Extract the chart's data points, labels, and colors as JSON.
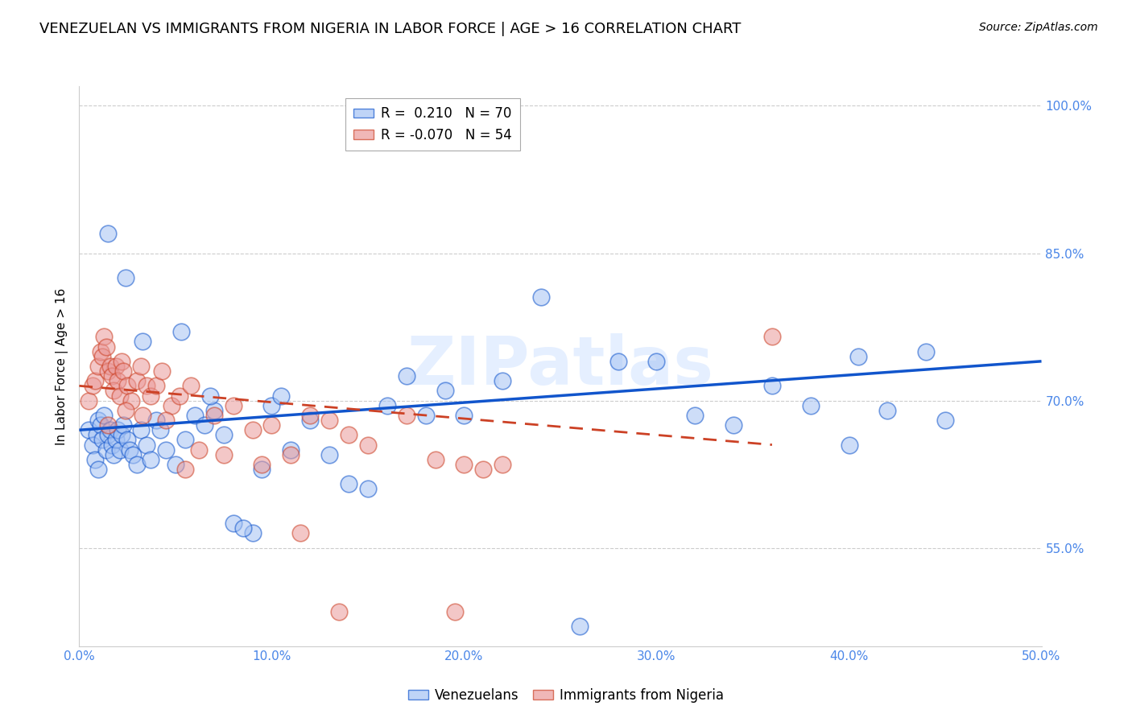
{
  "title": "VENEZUELAN VS IMMIGRANTS FROM NIGERIA IN LABOR FORCE | AGE > 16 CORRELATION CHART",
  "source": "Source: ZipAtlas.com",
  "ylabel": "In Labor Force | Age > 16",
  "watermark": "ZIPatlas",
  "xlim": [
    0.0,
    50.0
  ],
  "ylim": [
    45.0,
    102.0
  ],
  "xticks": [
    0.0,
    10.0,
    20.0,
    30.0,
    40.0,
    50.0
  ],
  "yticks_right": [
    55.0,
    70.0,
    85.0,
    100.0
  ],
  "blue_R": 0.21,
  "blue_N": 70,
  "pink_R": -0.07,
  "pink_N": 54,
  "blue_color": "#a4c2f4",
  "pink_color": "#ea9999",
  "blue_line_color": "#1155cc",
  "pink_line_color": "#cc4125",
  "legend_label_blue": "Venezuelans",
  "legend_label_pink": "Immigrants from Nigeria",
  "title_fontsize": 13,
  "axis_color": "#4a86e8",
  "grid_color": "#cccccc",
  "blue_trend_x": [
    0.0,
    50.0
  ],
  "blue_trend_y": [
    67.0,
    74.0
  ],
  "pink_trend_x": [
    0.0,
    36.0
  ],
  "pink_trend_y": [
    71.5,
    65.5
  ],
  "blue_scatter_x": [
    0.5,
    0.7,
    0.8,
    0.9,
    1.0,
    1.0,
    1.1,
    1.2,
    1.3,
    1.4,
    1.5,
    1.6,
    1.7,
    1.8,
    1.9,
    2.0,
    2.1,
    2.2,
    2.3,
    2.5,
    2.6,
    2.8,
    3.0,
    3.2,
    3.5,
    3.7,
    4.0,
    4.2,
    4.5,
    5.0,
    5.5,
    6.0,
    6.5,
    7.0,
    7.5,
    8.0,
    9.0,
    9.5,
    10.0,
    11.0,
    12.0,
    13.0,
    14.0,
    15.0,
    16.0,
    17.0,
    18.0,
    20.0,
    22.0,
    24.0,
    26.0,
    28.0,
    30.0,
    32.0,
    34.0,
    36.0,
    38.0,
    40.0,
    42.0,
    44.0,
    1.5,
    2.4,
    3.3,
    5.3,
    6.8,
    8.5,
    10.5,
    19.0,
    40.5,
    45.0
  ],
  "blue_scatter_y": [
    67.0,
    65.5,
    64.0,
    66.5,
    68.0,
    63.0,
    67.5,
    66.0,
    68.5,
    65.0,
    66.5,
    67.0,
    65.5,
    64.5,
    66.0,
    67.0,
    65.0,
    66.5,
    67.5,
    66.0,
    65.0,
    64.5,
    63.5,
    67.0,
    65.5,
    64.0,
    68.0,
    67.0,
    65.0,
    63.5,
    66.0,
    68.5,
    67.5,
    69.0,
    66.5,
    57.5,
    56.5,
    63.0,
    69.5,
    65.0,
    68.0,
    64.5,
    61.5,
    61.0,
    69.5,
    72.5,
    68.5,
    68.5,
    72.0,
    80.5,
    47.0,
    74.0,
    74.0,
    68.5,
    67.5,
    71.5,
    69.5,
    65.5,
    69.0,
    75.0,
    87.0,
    82.5,
    76.0,
    77.0,
    70.5,
    57.0,
    70.5,
    71.0,
    74.5,
    68.0
  ],
  "pink_scatter_x": [
    0.5,
    0.7,
    0.8,
    1.0,
    1.1,
    1.2,
    1.3,
    1.4,
    1.5,
    1.6,
    1.7,
    1.8,
    1.9,
    2.0,
    2.1,
    2.2,
    2.3,
    2.5,
    2.7,
    3.0,
    3.2,
    3.5,
    3.7,
    4.0,
    4.3,
    4.8,
    5.2,
    5.8,
    6.2,
    7.0,
    8.0,
    9.0,
    10.0,
    11.0,
    12.0,
    13.0,
    14.0,
    15.0,
    17.0,
    18.5,
    20.0,
    36.0,
    1.5,
    2.4,
    3.3,
    4.5,
    5.5,
    7.5,
    9.5,
    11.5,
    13.5,
    19.5,
    21.0,
    22.0
  ],
  "pink_scatter_y": [
    70.0,
    71.5,
    72.0,
    73.5,
    75.0,
    74.5,
    76.5,
    75.5,
    73.0,
    73.5,
    72.5,
    71.0,
    73.5,
    72.0,
    70.5,
    74.0,
    73.0,
    71.5,
    70.0,
    72.0,
    73.5,
    71.5,
    70.5,
    71.5,
    73.0,
    69.5,
    70.5,
    71.5,
    65.0,
    68.5,
    69.5,
    67.0,
    67.5,
    64.5,
    68.5,
    68.0,
    66.5,
    65.5,
    68.5,
    64.0,
    63.5,
    76.5,
    67.5,
    69.0,
    68.5,
    68.0,
    63.0,
    64.5,
    63.5,
    56.5,
    48.5,
    48.5,
    63.0,
    63.5
  ]
}
